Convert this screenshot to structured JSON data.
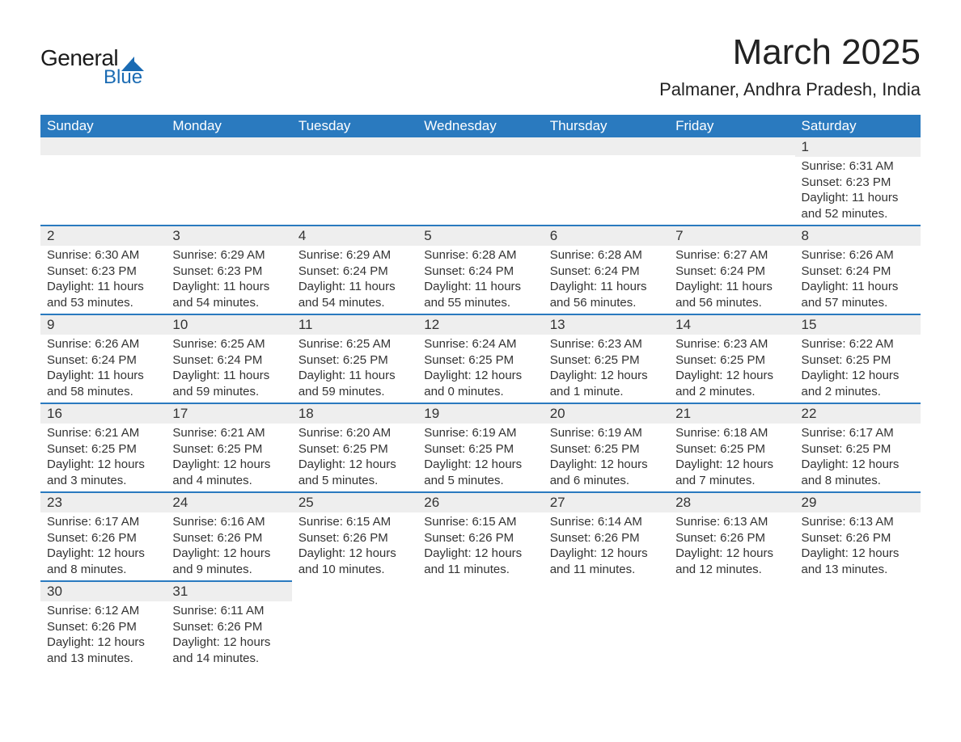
{
  "logo": {
    "general": "General",
    "blue": "Blue",
    "triangle_color": "#1a6bb3"
  },
  "header": {
    "month_title": "March 2025",
    "location": "Palmaner, Andhra Pradesh, India"
  },
  "colors": {
    "header_bg": "#2a7abf",
    "header_text": "#ffffff",
    "row_border": "#2a7abf",
    "daynum_bg": "#eeeeee",
    "text": "#333333",
    "background": "#ffffff"
  },
  "calendar": {
    "type": "table",
    "columns": [
      "Sunday",
      "Monday",
      "Tuesday",
      "Wednesday",
      "Thursday",
      "Friday",
      "Saturday"
    ],
    "weeks": [
      [
        null,
        null,
        null,
        null,
        null,
        null,
        {
          "d": "1",
          "sr": "6:31 AM",
          "ss": "6:23 PM",
          "dl": "11 hours and 52 minutes."
        }
      ],
      [
        {
          "d": "2",
          "sr": "6:30 AM",
          "ss": "6:23 PM",
          "dl": "11 hours and 53 minutes."
        },
        {
          "d": "3",
          "sr": "6:29 AM",
          "ss": "6:23 PM",
          "dl": "11 hours and 54 minutes."
        },
        {
          "d": "4",
          "sr": "6:29 AM",
          "ss": "6:24 PM",
          "dl": "11 hours and 54 minutes."
        },
        {
          "d": "5",
          "sr": "6:28 AM",
          "ss": "6:24 PM",
          "dl": "11 hours and 55 minutes."
        },
        {
          "d": "6",
          "sr": "6:28 AM",
          "ss": "6:24 PM",
          "dl": "11 hours and 56 minutes."
        },
        {
          "d": "7",
          "sr": "6:27 AM",
          "ss": "6:24 PM",
          "dl": "11 hours and 56 minutes."
        },
        {
          "d": "8",
          "sr": "6:26 AM",
          "ss": "6:24 PM",
          "dl": "11 hours and 57 minutes."
        }
      ],
      [
        {
          "d": "9",
          "sr": "6:26 AM",
          "ss": "6:24 PM",
          "dl": "11 hours and 58 minutes."
        },
        {
          "d": "10",
          "sr": "6:25 AM",
          "ss": "6:24 PM",
          "dl": "11 hours and 59 minutes."
        },
        {
          "d": "11",
          "sr": "6:25 AM",
          "ss": "6:25 PM",
          "dl": "11 hours and 59 minutes."
        },
        {
          "d": "12",
          "sr": "6:24 AM",
          "ss": "6:25 PM",
          "dl": "12 hours and 0 minutes."
        },
        {
          "d": "13",
          "sr": "6:23 AM",
          "ss": "6:25 PM",
          "dl": "12 hours and 1 minute."
        },
        {
          "d": "14",
          "sr": "6:23 AM",
          "ss": "6:25 PM",
          "dl": "12 hours and 2 minutes."
        },
        {
          "d": "15",
          "sr": "6:22 AM",
          "ss": "6:25 PM",
          "dl": "12 hours and 2 minutes."
        }
      ],
      [
        {
          "d": "16",
          "sr": "6:21 AM",
          "ss": "6:25 PM",
          "dl": "12 hours and 3 minutes."
        },
        {
          "d": "17",
          "sr": "6:21 AM",
          "ss": "6:25 PM",
          "dl": "12 hours and 4 minutes."
        },
        {
          "d": "18",
          "sr": "6:20 AM",
          "ss": "6:25 PM",
          "dl": "12 hours and 5 minutes."
        },
        {
          "d": "19",
          "sr": "6:19 AM",
          "ss": "6:25 PM",
          "dl": "12 hours and 5 minutes."
        },
        {
          "d": "20",
          "sr": "6:19 AM",
          "ss": "6:25 PM",
          "dl": "12 hours and 6 minutes."
        },
        {
          "d": "21",
          "sr": "6:18 AM",
          "ss": "6:25 PM",
          "dl": "12 hours and 7 minutes."
        },
        {
          "d": "22",
          "sr": "6:17 AM",
          "ss": "6:25 PM",
          "dl": "12 hours and 8 minutes."
        }
      ],
      [
        {
          "d": "23",
          "sr": "6:17 AM",
          "ss": "6:26 PM",
          "dl": "12 hours and 8 minutes."
        },
        {
          "d": "24",
          "sr": "6:16 AM",
          "ss": "6:26 PM",
          "dl": "12 hours and 9 minutes."
        },
        {
          "d": "25",
          "sr": "6:15 AM",
          "ss": "6:26 PM",
          "dl": "12 hours and 10 minutes."
        },
        {
          "d": "26",
          "sr": "6:15 AM",
          "ss": "6:26 PM",
          "dl": "12 hours and 11 minutes."
        },
        {
          "d": "27",
          "sr": "6:14 AM",
          "ss": "6:26 PM",
          "dl": "12 hours and 11 minutes."
        },
        {
          "d": "28",
          "sr": "6:13 AM",
          "ss": "6:26 PM",
          "dl": "12 hours and 12 minutes."
        },
        {
          "d": "29",
          "sr": "6:13 AM",
          "ss": "6:26 PM",
          "dl": "12 hours and 13 minutes."
        }
      ],
      [
        {
          "d": "30",
          "sr": "6:12 AM",
          "ss": "6:26 PM",
          "dl": "12 hours and 13 minutes."
        },
        {
          "d": "31",
          "sr": "6:11 AM",
          "ss": "6:26 PM",
          "dl": "12 hours and 14 minutes."
        },
        null,
        null,
        null,
        null,
        null
      ]
    ],
    "labels": {
      "sunrise": "Sunrise: ",
      "sunset": "Sunset: ",
      "daylight": "Daylight: "
    }
  }
}
